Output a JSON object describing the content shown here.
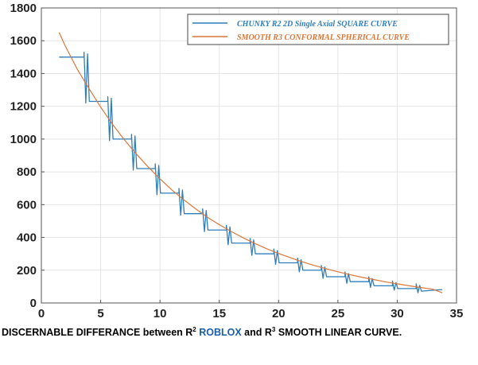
{
  "chart_data": {
    "type": "line",
    "title": "",
    "xlabel": "",
    "ylabel": "",
    "xlim": [
      0,
      35
    ],
    "ylim": [
      0,
      1800
    ],
    "xticks": [
      0,
      5,
      10,
      15,
      20,
      25,
      30,
      35
    ],
    "yticks": [
      0,
      200,
      400,
      600,
      800,
      1000,
      1200,
      1400,
      1600,
      1800
    ],
    "grid": true,
    "legend_position": "top-right",
    "series": [
      {
        "name": "CHUNKY R2 2D Single Axial SQUARE CURVE",
        "color": "#2f7ebc",
        "style": "step",
        "x": [
          1.5,
          3.6,
          3.6,
          5.6,
          5.6,
          7.6,
          7.6,
          9.6,
          9.6,
          11.6,
          11.6,
          13.6,
          13.6,
          15.6,
          15.6,
          17.6,
          17.6,
          19.6,
          19.6,
          21.6,
          21.6,
          23.6,
          23.6,
          25.6,
          25.6,
          27.6,
          27.6,
          29.6,
          29.6,
          31.6,
          31.6,
          33.8
        ],
        "y": [
          1500,
          1500,
          1230,
          1230,
          1000,
          1000,
          820,
          820,
          670,
          670,
          545,
          545,
          445,
          445,
          365,
          365,
          300,
          300,
          245,
          245,
          200,
          200,
          160,
          160,
          130,
          130,
          105,
          105,
          88,
          88,
          72,
          82
        ]
      },
      {
        "name": "SMOOTH R3 CONFORMAL SPHERICAL CURVE",
        "color": "#d9773a",
        "style": "smooth",
        "x": [
          1.5,
          2,
          3,
          4,
          5,
          6,
          7,
          8,
          9,
          10,
          11,
          12,
          13,
          14,
          15,
          16,
          17,
          18,
          19,
          20,
          21,
          22,
          23,
          24,
          25,
          26,
          27,
          28,
          29,
          30,
          31,
          32,
          33,
          33.8
        ],
        "y": [
          1650,
          1570,
          1430,
          1310,
          1195,
          1090,
          995,
          910,
          830,
          757,
          690,
          630,
          575,
          523,
          478,
          436,
          398,
          363,
          331,
          302,
          276,
          251,
          229,
          209,
          190,
          173,
          157,
          143,
          129,
          117,
          105,
          94,
          84,
          62
        ]
      }
    ]
  },
  "caption": {
    "prefix": "DISCERNABLE DIFFERANCE between R",
    "sup1": "2",
    "middle_colored": " ROBLOX",
    "middle": " and R",
    "sup2": "3",
    "suffix": " SMOOTH LINEAR CURVE."
  }
}
